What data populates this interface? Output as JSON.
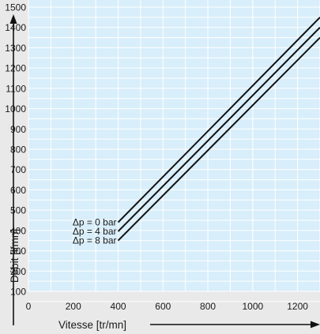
{
  "chart_data": {
    "type": "line",
    "title": "",
    "xlabel": "Vitesse [tr/mn]",
    "ylabel": "Débit [l/mn]",
    "xlim": [
      0,
      1300
    ],
    "ylim": [
      100,
      1500
    ],
    "x_ticks": [
      0,
      200,
      400,
      600,
      800,
      1000,
      1200
    ],
    "y_ticks": [
      100,
      200,
      300,
      400,
      500,
      600,
      700,
      800,
      900,
      1000,
      1100,
      1200,
      1300,
      1400,
      1500
    ],
    "grid": true,
    "background_color": "#d8eefa",
    "grid_color": "#ffffff",
    "line_color": "#111111",
    "series": [
      {
        "name": "Δp = 0 bar",
        "x": [
          400,
          1300
        ],
        "y": [
          440,
          1450
        ]
      },
      {
        "name": "Δp = 4 bar",
        "x": [
          400,
          1300
        ],
        "y": [
          395,
          1400
        ]
      },
      {
        "name": "Δp = 8 bar",
        "x": [
          400,
          1300
        ],
        "y": [
          350,
          1350
        ]
      }
    ]
  }
}
